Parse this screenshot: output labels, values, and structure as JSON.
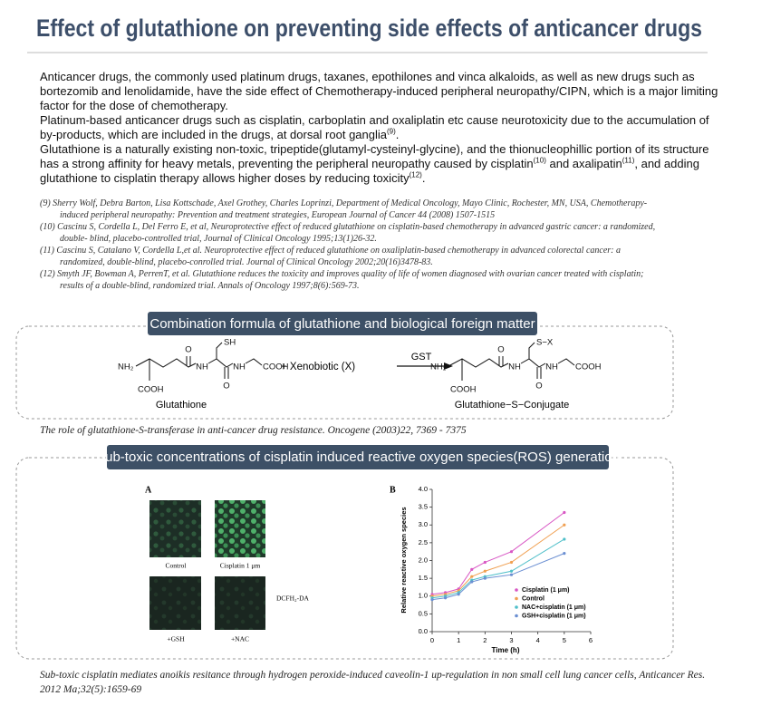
{
  "header": {
    "title": "Effect of glutathione on preventing side effects of anticancer drugs"
  },
  "body": [
    [
      {
        "text": "Anticancer drugs, the commonly used platinum drugs, taxanes, epothilones and vinca alkaloids, as well as new drugs such as bortezomib and lenolidamide, have the side effect of Chemotherapy-induced peripheral neuropathy/CIPN, which is a major limiting factor for the dose of chemotherapy."
      }
    ],
    [
      {
        "text": "Platinum-based anticancer drugs such as cisplatin, carboplatin and oxaliplatin etc cause neurotoxicity due to the accumulation of by-products, which are included in the drugs, at dorsal root ganglia"
      },
      {
        "sup": "(9)"
      },
      {
        "text": "."
      }
    ],
    [
      {
        "text": "Glutathione is a naturally existing non-toxic, tripeptide(glutamyl-cysteinyl-glycine), and the thionucleophillic portion of its structure has a strong affinity for heavy metals, preventing the peripheral neuropathy caused by cisplatin"
      },
      {
        "sup": "(10)"
      },
      {
        "text": " and axalipatin"
      },
      {
        "sup": "(11)"
      },
      {
        "text": ", and adding glutathione to cisplatin therapy allows higher doses by reducing toxicity"
      },
      {
        "sup": "(12)"
      },
      {
        "text": "."
      }
    ]
  ],
  "references": [
    "(9) Sherry Wolf, Debra Barton, Lisa Kottschade, Axel Grothey, Charles Loprinzi, Department of Medical Oncology, Mayo Clinic, Rochester, MN, USA, Chemotherapy-induced peripheral neuropathy: Prevention and treatment strategies, European Journal of Cancer 44 (2008) 1507-1515",
    "(10) Cascinu S, Cordella L, Del Ferro E, et al, Neuroprotective effect of reduced glutathione on cisplatin-based chemotherapy in advanced gastric cancer: a randomized, double- blind, placebo-controlled trial, Journal of Clinical Oncology 1995;13(1)26-32.",
    "(11) Cascinu S, Catalano V, Cordella L,et al. Neuroprotective effect of reduced glutathione on oxaliplatin-based chemotherapy in advanced colorectal cancer: a randomized, double-blind, placebo-conrolled trial. Journal of Clinical Oncology 2002;20(16)3478-83.",
    "(12) Smyth JF, Bowman A, PerrenT, et al. Glutathione reduces the toxicity and improves quality of life of women diagnosed with ovarian cancer treated with cisplatin; results of a double-blind, randomized trial. Annals of Oncology 1997;8(6):569-73."
  ],
  "section1": {
    "title": "Combination formula of glutathione and biological foreign matter",
    "left_atoms": [
      "NH₂",
      "COOH",
      "O",
      "NH",
      "SH",
      "O",
      "NH",
      "COOH"
    ],
    "reagent": "+ Xenobiotic (X)",
    "enzyme": "GST",
    "right_atoms": [
      "NH₂",
      "COOH",
      "O",
      "NH",
      "S−X",
      "O",
      "NH",
      "COOH"
    ],
    "left_name": "Glutathione",
    "right_name": "Glutathione−S−Conjugate",
    "caption": "The role of glutathione-S-transferase in anti-cancer drug resistance. Oncogene (2003)22, 7369 - 7375"
  },
  "section2": {
    "title": "Sub-toxic concentrations of cisplatin induced reactive oxygen species(ROS) generation",
    "panel_a": {
      "label": "A",
      "images": [
        "Control",
        "Cisplatin 1 μm",
        "+GSH",
        "+NAC"
      ],
      "stain": "DCFH₂-DA"
    },
    "caption": "Sub-toxic cisplatin mediates anoikis resitance through hydrogen peroxide-induced caveolin-1 up-regulation in non small cell lung cancer cells, Anticancer Res. 2012 Ma;32(5):1659-69"
  },
  "chart_data": {
    "type": "line",
    "panel_label": "B",
    "x_label": "Time (h)",
    "y_label": "Relative reactive oxygen species",
    "x": [
      0,
      0.5,
      1,
      1.5,
      2,
      3,
      5
    ],
    "xlim": [
      0,
      6
    ],
    "xticks": [
      0,
      1,
      2,
      3,
      4,
      5,
      6
    ],
    "ylim": [
      0,
      4
    ],
    "yticks": [
      {
        "value": 0,
        "label": "0.0"
      },
      0.5,
      {
        "value": 1,
        "label": "1.0"
      },
      1.5,
      {
        "value": 2,
        "label": "2.0"
      },
      2.5,
      {
        "value": 3,
        "label": "3.0"
      },
      3.5,
      {
        "value": 4,
        "label": "4.0"
      }
    ],
    "series": [
      {
        "name": "Cisplatin (1 μm)",
        "color": "#d856c4",
        "values": [
          1.05,
          1.1,
          1.2,
          1.75,
          1.95,
          2.25,
          3.35
        ]
      },
      {
        "name": "Control",
        "color": "#f0a052",
        "values": [
          1.0,
          1.05,
          1.15,
          1.55,
          1.7,
          1.95,
          3.0
        ]
      },
      {
        "name": "NAC+cisplatin (1 μm)",
        "color": "#4fbfc9",
        "values": [
          0.95,
          1.0,
          1.1,
          1.45,
          1.55,
          1.7,
          2.6
        ]
      },
      {
        "name": "GSH+cisplatin (1 μm)",
        "color": "#6b8fd2",
        "values": [
          0.9,
          0.95,
          1.05,
          1.4,
          1.5,
          1.6,
          2.2
        ]
      }
    ]
  }
}
